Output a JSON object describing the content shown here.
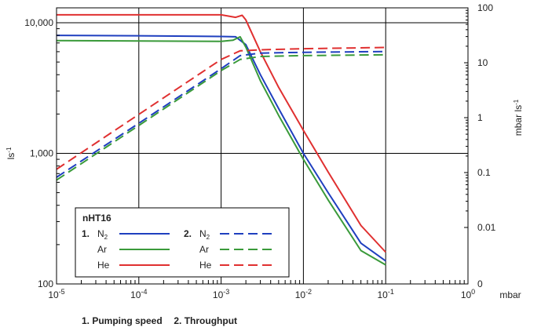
{
  "chart_data": {
    "type": "line",
    "title": "",
    "legend_title": "nHT16",
    "x_scale": "log",
    "xlim": [
      1e-05,
      1
    ],
    "xlabel": "mbar",
    "x_ticks": [
      {
        "value": 1e-05,
        "base": "10",
        "exp": "-5"
      },
      {
        "value": 0.0001,
        "base": "10",
        "exp": "-4"
      },
      {
        "value": 0.001,
        "base": "10",
        "exp": "-3"
      },
      {
        "value": 0.01,
        "base": "10",
        "exp": "-2"
      },
      {
        "value": 0.1,
        "base": "10",
        "exp": "-1"
      },
      {
        "value": 1,
        "base": "10",
        "exp": "0"
      }
    ],
    "y_left": {
      "scale": "log",
      "ylim": [
        100,
        13000
      ],
      "label_base": "ls",
      "label_exp": "-1",
      "ticks": [
        {
          "value": 100,
          "label": "100"
        },
        {
          "value": 1000,
          "label": "1,000"
        },
        {
          "value": 10000,
          "label": "10,000"
        }
      ]
    },
    "y_right": {
      "scale": "log-with-zero",
      "label_base": "mbar ls",
      "label_exp": "-1",
      "ticks": [
        {
          "value": 0,
          "label": "0"
        },
        {
          "value": 0.01,
          "label": "0.01"
        },
        {
          "value": 0.1,
          "label": "0.1"
        },
        {
          "value": 1,
          "label": "1"
        },
        {
          "value": 10,
          "label": "10"
        },
        {
          "value": 100,
          "label": "100"
        }
      ]
    },
    "series_groups": [
      {
        "number": "1.",
        "description": "Pumping speed",
        "axis": "left",
        "style": "solid"
      },
      {
        "number": "2.",
        "description": "Throughput",
        "axis": "right",
        "style": "dashed"
      }
    ],
    "series": [
      {
        "group": 1,
        "gas": "N",
        "sub": "2",
        "color": "#1f3fbf",
        "points": [
          [
            1e-05,
            8000
          ],
          [
            0.0001,
            7950
          ],
          [
            0.001,
            7850
          ],
          [
            0.0015,
            7800
          ],
          [
            0.002,
            6800
          ],
          [
            0.003,
            4000
          ],
          [
            0.005,
            2200
          ],
          [
            0.01,
            1000
          ],
          [
            0.02,
            500
          ],
          [
            0.05,
            205
          ],
          [
            0.1,
            150
          ]
        ]
      },
      {
        "group": 1,
        "gas": "Ar",
        "sub": "",
        "color": "#3a9a3a",
        "points": [
          [
            1e-05,
            7300
          ],
          [
            0.0001,
            7250
          ],
          [
            0.001,
            7200
          ],
          [
            0.0014,
            7350
          ],
          [
            0.0017,
            7800
          ],
          [
            0.002,
            6500
          ],
          [
            0.003,
            3600
          ],
          [
            0.005,
            1950
          ],
          [
            0.01,
            900
          ],
          [
            0.02,
            440
          ],
          [
            0.05,
            180
          ],
          [
            0.1,
            140
          ]
        ]
      },
      {
        "group": 1,
        "gas": "He",
        "sub": "",
        "color": "#e03030",
        "points": [
          [
            1e-05,
            11500
          ],
          [
            0.0001,
            11500
          ],
          [
            0.001,
            11500
          ],
          [
            0.0015,
            11000
          ],
          [
            0.0018,
            11400
          ],
          [
            0.002,
            10500
          ],
          [
            0.003,
            6000
          ],
          [
            0.005,
            3200
          ],
          [
            0.01,
            1500
          ],
          [
            0.02,
            720
          ],
          [
            0.05,
            280
          ],
          [
            0.1,
            175
          ]
        ]
      },
      {
        "group": 2,
        "gas": "N",
        "sub": "2",
        "color": "#1f3fbf",
        "points": [
          [
            1e-05,
            0.082
          ],
          [
            0.0001,
            0.79
          ],
          [
            0.001,
            7.8
          ],
          [
            0.0017,
            13.5
          ],
          [
            0.003,
            15.0
          ],
          [
            0.01,
            15.5
          ],
          [
            0.1,
            16.0
          ]
        ]
      },
      {
        "group": 2,
        "gas": "Ar",
        "sub": "",
        "color": "#3a9a3a",
        "points": [
          [
            1e-05,
            0.073
          ],
          [
            0.0001,
            0.72
          ],
          [
            0.001,
            7.2
          ],
          [
            0.0017,
            11.5
          ],
          [
            0.003,
            13.0
          ],
          [
            0.01,
            13.5
          ],
          [
            0.1,
            14.0
          ]
        ]
      },
      {
        "group": 2,
        "gas": "He",
        "sub": "",
        "color": "#e03030",
        "points": [
          [
            1e-05,
            0.115
          ],
          [
            0.0001,
            1.15
          ],
          [
            0.001,
            11.5
          ],
          [
            0.0017,
            16.5
          ],
          [
            0.003,
            17.2
          ],
          [
            0.01,
            18.0
          ],
          [
            0.1,
            19.0
          ]
        ]
      }
    ],
    "grid": "major"
  },
  "caption": {
    "part1": "1. Pumping speed",
    "part2": "2. Throughput"
  },
  "colors": {
    "axis": "#000000",
    "n2": "#1f3fbf",
    "ar": "#3a9a3a",
    "he": "#e03030"
  }
}
